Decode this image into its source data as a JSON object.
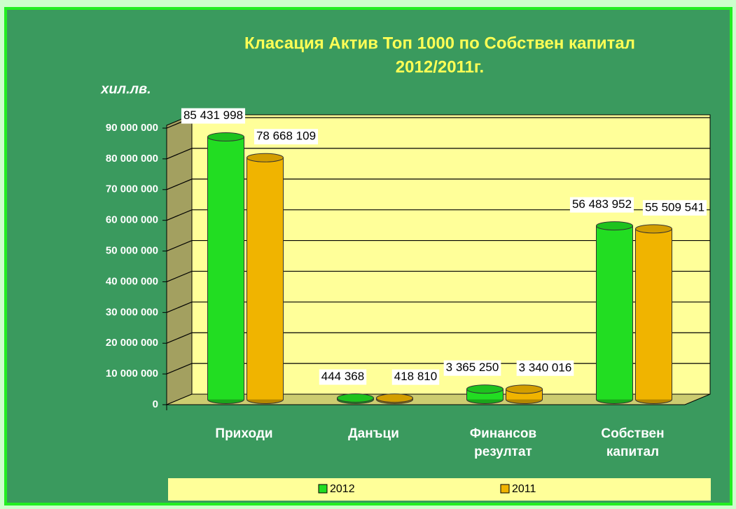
{
  "chart_data": {
    "type": "bar",
    "title": [
      "Класация Актив Топ 1000  по Собствен капитал",
      "2012/2011г."
    ],
    "y_label": "хил.лв.",
    "categories": [
      "Приходи",
      "Данъци",
      "Финансов резултат",
      "Собствен капитал"
    ],
    "series": [
      {
        "name": "2012",
        "color": "#22dd22",
        "values": [
          85431998,
          444368,
          3365250,
          56483952
        ],
        "value_labels": [
          "85 431 998",
          "444 368",
          "3 365 250",
          "56 483 952"
        ]
      },
      {
        "name": "2011",
        "color": "#f0b400",
        "values": [
          78668109,
          418810,
          3340016,
          55509541
        ],
        "value_labels": [
          "78 668 109",
          "418 810",
          "3 340 016",
          "55 509 541"
        ]
      }
    ],
    "ylim": [
      0,
      90000000
    ],
    "yticks": [
      0,
      {
        "value": 10000000,
        "label": "10 000 000"
      },
      {
        "value": 20000000,
        "label": "20 000 000"
      },
      {
        "value": 30000000,
        "label": "30 000 000"
      },
      {
        "value": 40000000,
        "label": "40 000 000"
      },
      {
        "value": 50000000,
        "label": "50 000 000"
      },
      {
        "value": 60000000,
        "label": "60 000 000"
      },
      {
        "value": 70000000,
        "label": "70 000 000"
      },
      {
        "value": 80000000,
        "label": "80 000 000"
      },
      {
        "value": 90000000,
        "label": "90 000 000"
      }
    ],
    "grid": true,
    "legend": "bottom"
  }
}
